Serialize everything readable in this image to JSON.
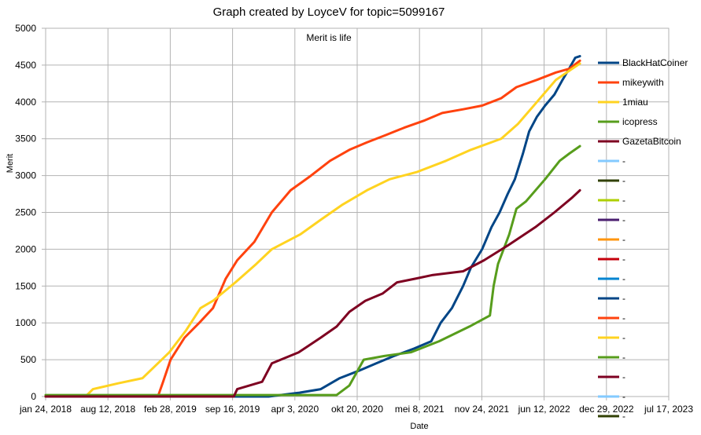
{
  "chart_data": {
    "type": "line",
    "title": "Graph created by LoyceV for topic=5099167",
    "subtitle": "Merit is life",
    "xlabel": "Date",
    "ylabel": "Merit",
    "ylim": [
      0,
      5000
    ],
    "y_ticks": [
      0,
      500,
      1000,
      1500,
      2000,
      2500,
      3000,
      3500,
      4000,
      4500,
      5000
    ],
    "x_ticks": [
      {
        "date": "2018-01-24",
        "label": "jan 24, 2018"
      },
      {
        "date": "2018-08-12",
        "label": "aug 12, 2018"
      },
      {
        "date": "2019-02-28",
        "label": "feb 28, 2019"
      },
      {
        "date": "2019-09-16",
        "label": "sep 16, 2019"
      },
      {
        "date": "2020-04-03",
        "label": "apr 3, 2020"
      },
      {
        "date": "2020-10-20",
        "label": "okt 20, 2020"
      },
      {
        "date": "2021-05-08",
        "label": "mei 8, 2021"
      },
      {
        "date": "2021-11-24",
        "label": "nov 24, 2021"
      },
      {
        "date": "2022-06-12",
        "label": "jun 12, 2022"
      },
      {
        "date": "2022-12-29",
        "label": "dec 29, 2022"
      },
      {
        "date": "2023-07-17",
        "label": "jul 17, 2023"
      }
    ],
    "grid": true,
    "legend_position": "right",
    "series": [
      {
        "name": "BlackHatCoiner",
        "color": "#004586",
        "x": [
          "2018-01-24",
          "2020-01-10",
          "2020-04-15",
          "2020-06-25",
          "2020-08-25",
          "2020-10-25",
          "2020-12-20",
          "2021-02-15",
          "2021-04-20",
          "2021-06-15",
          "2021-07-15",
          "2021-08-20",
          "2021-09-25",
          "2021-10-20",
          "2021-11-25",
          "2021-12-25",
          "2022-01-20",
          "2022-02-15",
          "2022-03-10",
          "2022-04-05",
          "2022-04-25",
          "2022-05-20",
          "2022-06-15",
          "2022-07-15",
          "2022-08-10",
          "2022-08-31",
          "2022-09-20",
          "2022-10-05"
        ],
        "y": [
          0,
          0,
          50,
          100,
          250,
          350,
          450,
          550,
          650,
          750,
          1000,
          1200,
          1500,
          1750,
          2000,
          2300,
          2500,
          2750,
          2950,
          3300,
          3600,
          3800,
          3950,
          4100,
          4300,
          4450,
          4600,
          4620
        ]
      },
      {
        "name": "mikeywith",
        "color": "#ff420e",
        "x": [
          "2018-01-24",
          "2019-01-20",
          "2019-02-05",
          "2019-03-01",
          "2019-04-15",
          "2019-06-01",
          "2019-07-15",
          "2019-08-25",
          "2019-10-01",
          "2019-11-25",
          "2020-01-20",
          "2020-03-20",
          "2020-05-25",
          "2020-07-25",
          "2020-09-25",
          "2020-11-20",
          "2021-01-20",
          "2021-03-20",
          "2021-05-25",
          "2021-07-20",
          "2021-09-25",
          "2021-11-25",
          "2022-01-25",
          "2022-03-15",
          "2022-05-20",
          "2022-07-20",
          "2022-09-01",
          "2022-10-05"
        ],
        "y": [
          0,
          10,
          200,
          500,
          800,
          1000,
          1200,
          1600,
          1850,
          2100,
          2500,
          2800,
          3000,
          3200,
          3350,
          3450,
          3550,
          3650,
          3750,
          3850,
          3900,
          3950,
          4050,
          4200,
          4300,
          4400,
          4450,
          4560
        ]
      },
      {
        "name": "1miau",
        "color": "#ffd320",
        "x": [
          "2018-01-24",
          "2018-06-01",
          "2018-06-25",
          "2018-09-15",
          "2018-12-01",
          "2019-02-25",
          "2019-04-20",
          "2019-06-05",
          "2019-07-15",
          "2019-09-25",
          "2019-12-01",
          "2020-01-20",
          "2020-04-20",
          "2020-06-25",
          "2020-09-01",
          "2020-11-20",
          "2021-02-01",
          "2021-05-01",
          "2021-08-01",
          "2021-10-20",
          "2022-01-25",
          "2022-03-20",
          "2022-05-20",
          "2022-07-20",
          "2022-09-10",
          "2022-10-05"
        ],
        "y": [
          0,
          0,
          100,
          180,
          250,
          600,
          900,
          1200,
          1300,
          1550,
          1800,
          2000,
          2200,
          2400,
          2600,
          2800,
          2950,
          3050,
          3200,
          3350,
          3500,
          3700,
          4000,
          4300,
          4450,
          4520
        ]
      },
      {
        "name": "icopress",
        "color": "#579d1c",
        "x": [
          "2018-01-24",
          "2020-08-15",
          "2020-09-25",
          "2020-11-10",
          "2021-01-15",
          "2021-04-10",
          "2021-07-10",
          "2021-10-15",
          "2021-12-20",
          "2022-01-01",
          "2022-01-15",
          "2022-02-20",
          "2022-03-15",
          "2022-04-15",
          "2022-06-15",
          "2022-08-01",
          "2022-09-01",
          "2022-10-05"
        ],
        "y": [
          20,
          20,
          150,
          500,
          550,
          600,
          750,
          950,
          1100,
          1500,
          1800,
          2200,
          2550,
          2650,
          2950,
          3200,
          3300,
          3400
        ]
      },
      {
        "name": "GazetaBitcoin",
        "color": "#7e0021",
        "x": [
          "2018-01-24",
          "2019-09-20",
          "2019-10-01",
          "2019-12-20",
          "2020-01-20",
          "2020-04-15",
          "2020-06-25",
          "2020-08-15",
          "2020-09-25",
          "2020-11-15",
          "2021-01-10",
          "2021-02-25",
          "2021-04-25",
          "2021-06-20",
          "2021-09-25",
          "2021-12-01",
          "2022-02-15",
          "2022-05-15",
          "2022-07-15",
          "2022-09-10",
          "2022-10-05"
        ],
        "y": [
          0,
          0,
          100,
          200,
          450,
          600,
          800,
          950,
          1150,
          1300,
          1400,
          1550,
          1600,
          1650,
          1700,
          1850,
          2050,
          2300,
          2500,
          2700,
          2800
        ]
      }
    ],
    "legend_extra_dashes": [
      {
        "label": "-",
        "color": "#83caff"
      },
      {
        "label": "-",
        "color": "#314004"
      },
      {
        "label": "-",
        "color": "#aecf00"
      },
      {
        "label": "-",
        "color": "#4b1f6f"
      },
      {
        "label": "-",
        "color": "#ff950e"
      },
      {
        "label": "-",
        "color": "#c5000b"
      },
      {
        "label": "-",
        "color": "#0084d1"
      },
      {
        "label": "-",
        "color": "#004586"
      },
      {
        "label": "-",
        "color": "#ff420e"
      },
      {
        "label": "-",
        "color": "#ffd320"
      },
      {
        "label": "-",
        "color": "#579d1c"
      },
      {
        "label": "-",
        "color": "#7e0021"
      },
      {
        "label": "-",
        "color": "#83caff"
      },
      {
        "label": "-",
        "color": "#314004"
      }
    ]
  }
}
